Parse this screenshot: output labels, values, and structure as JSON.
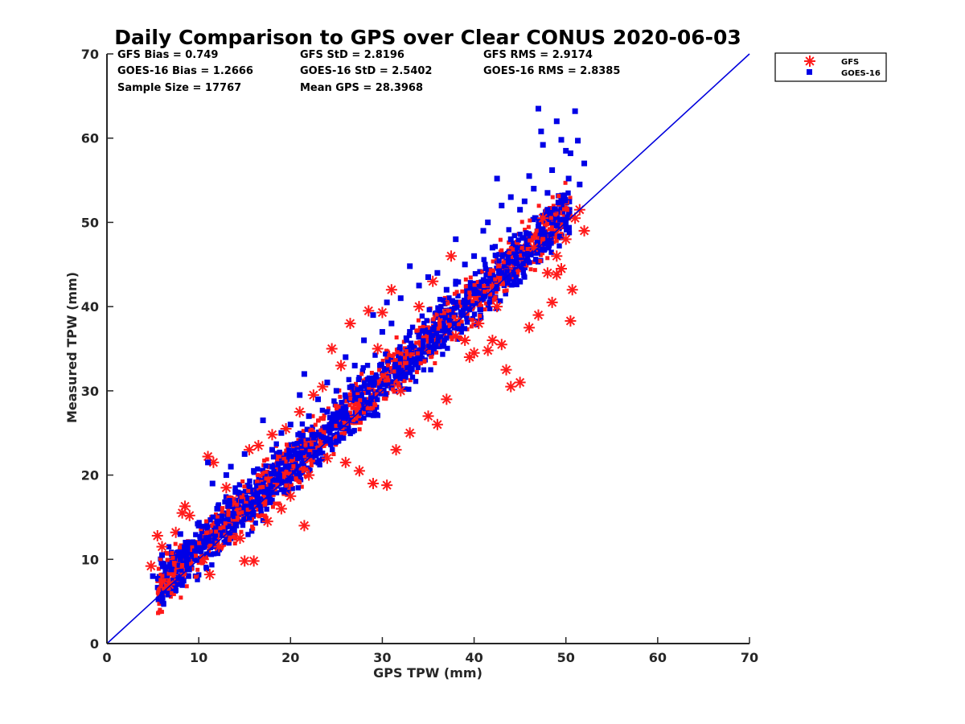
{
  "chart_data": {
    "type": "scatter",
    "title": "Daily Comparison to GPS over Clear CONUS 2020-06-03",
    "xlabel": "GPS TPW (mm)",
    "ylabel": "Measured TPW (mm)",
    "xlim": [
      0,
      70
    ],
    "ylim": [
      0,
      70
    ],
    "xticks": [
      "0",
      "10",
      "20",
      "30",
      "40",
      "50",
      "60",
      "70"
    ],
    "yticks": [
      "0",
      "10",
      "20",
      "30",
      "40",
      "50",
      "60",
      "70"
    ],
    "grid": false,
    "legend_position": "outside-top-right",
    "reference_line": {
      "name": "1:1 line",
      "x": [
        0,
        70
      ],
      "y": [
        0,
        70
      ],
      "color": "#0000dd"
    },
    "stats": [
      [
        "GFS Bias = 0.749",
        "GFS StD = 2.8196",
        "GFS RMS = 2.9174"
      ],
      [
        "GOES-16 Bias = 1.2666",
        "GOES-16 StD = 2.5402",
        "GOES-16 RMS = 2.8385"
      ],
      [
        "Sample Size = 17767",
        "Mean GPS = 28.3968",
        ""
      ]
    ],
    "series": [
      {
        "name": "GFS",
        "marker": "asterisk",
        "color": "#ff1a1a",
        "points": [
          [
            4.8,
            9.2
          ],
          [
            5.5,
            12.8
          ],
          [
            6,
            11.5
          ],
          [
            6.8,
            7
          ],
          [
            7.5,
            13.2
          ],
          [
            8.2,
            15.5
          ],
          [
            8.5,
            16.3
          ],
          [
            9,
            15.2
          ],
          [
            10.5,
            10
          ],
          [
            11,
            22.2
          ],
          [
            11.2,
            8.2
          ],
          [
            11.6,
            21.5
          ],
          [
            12.2,
            11.5
          ],
          [
            13,
            18.5
          ],
          [
            14.5,
            12.5
          ],
          [
            15,
            9.8
          ],
          [
            15.5,
            23
          ],
          [
            16,
            9.8
          ],
          [
            16.5,
            23.5
          ],
          [
            17.5,
            14.5
          ],
          [
            18,
            24.8
          ],
          [
            19,
            16
          ],
          [
            19.5,
            25.5
          ],
          [
            20,
            17.5
          ],
          [
            21,
            27.5
          ],
          [
            21.5,
            14
          ],
          [
            22,
            20
          ],
          [
            22.5,
            29.5
          ],
          [
            23.5,
            30.5
          ],
          [
            24,
            22
          ],
          [
            24.5,
            35
          ],
          [
            25.5,
            33
          ],
          [
            26,
            21.5
          ],
          [
            26.5,
            38
          ],
          [
            27.5,
            20.5
          ],
          [
            28.5,
            39.5
          ],
          [
            29,
            19
          ],
          [
            29.5,
            35
          ],
          [
            30,
            39.3
          ],
          [
            30.5,
            18.8
          ],
          [
            31,
            42
          ],
          [
            31.5,
            23
          ],
          [
            32,
            30
          ],
          [
            33,
            25
          ],
          [
            34,
            40
          ],
          [
            35,
            27
          ],
          [
            35.5,
            43
          ],
          [
            36,
            26
          ],
          [
            37,
            29
          ],
          [
            37.5,
            46
          ],
          [
            38,
            36.5
          ],
          [
            39,
            36
          ],
          [
            39.5,
            34
          ],
          [
            40,
            34.5
          ],
          [
            40.5,
            38
          ],
          [
            41.5,
            34.8
          ],
          [
            42,
            36
          ],
          [
            42.5,
            40
          ],
          [
            43,
            35.5
          ],
          [
            43.5,
            32.5
          ],
          [
            44,
            30.5
          ],
          [
            45,
            31
          ],
          [
            46,
            37.5
          ],
          [
            46.5,
            47
          ],
          [
            47,
            39
          ],
          [
            47.5,
            50.5
          ],
          [
            48,
            44
          ],
          [
            48.5,
            40.5
          ],
          [
            49,
            43.8
          ],
          [
            49.5,
            44.5
          ],
          [
            50,
            48
          ],
          [
            50.5,
            38.3
          ],
          [
            50.7,
            42
          ],
          [
            51,
            50.5
          ],
          [
            51.5,
            51.5
          ],
          [
            52,
            49
          ],
          [
            49,
            46
          ]
        ]
      },
      {
        "name": "GOES-16",
        "marker": "square",
        "color": "#0000e6",
        "points": [
          [
            5,
            8
          ],
          [
            6,
            10.5
          ],
          [
            7,
            8.8
          ],
          [
            8,
            13
          ],
          [
            9,
            12
          ],
          [
            10,
            14
          ],
          [
            11,
            21.5
          ],
          [
            11.5,
            19
          ],
          [
            12,
            16
          ],
          [
            13,
            20
          ],
          [
            13.5,
            21
          ],
          [
            14,
            18
          ],
          [
            15,
            22.5
          ],
          [
            16,
            20.5
          ],
          [
            17,
            26.5
          ],
          [
            18,
            23
          ],
          [
            19,
            25
          ],
          [
            20,
            26
          ],
          [
            21,
            29.5
          ],
          [
            21.5,
            32
          ],
          [
            22,
            27
          ],
          [
            23,
            29
          ],
          [
            24,
            31
          ],
          [
            25,
            30
          ],
          [
            26,
            34
          ],
          [
            27,
            33
          ],
          [
            28,
            36
          ],
          [
            29,
            39
          ],
          [
            30,
            37
          ],
          [
            30.5,
            40.5
          ],
          [
            31,
            38
          ],
          [
            32,
            41
          ],
          [
            33,
            44.8
          ],
          [
            34,
            42.5
          ],
          [
            35,
            43.5
          ],
          [
            36,
            44
          ],
          [
            37,
            42
          ],
          [
            38,
            48
          ],
          [
            39,
            45
          ],
          [
            40,
            46
          ],
          [
            41,
            49
          ],
          [
            41.5,
            50
          ],
          [
            42,
            47
          ],
          [
            42.5,
            55.2
          ],
          [
            43,
            52
          ],
          [
            44,
            53
          ],
          [
            45,
            51.5
          ],
          [
            45.5,
            52.5
          ],
          [
            46,
            55.5
          ],
          [
            46.5,
            54
          ],
          [
            47,
            63.5
          ],
          [
            47.3,
            60.8
          ],
          [
            47.5,
            59.2
          ],
          [
            48,
            53.5
          ],
          [
            48.5,
            56.2
          ],
          [
            49,
            62
          ],
          [
            49.5,
            59.8
          ],
          [
            50,
            58.5
          ],
          [
            50.3,
            55.2
          ],
          [
            50.5,
            58.2
          ],
          [
            51,
            63.2
          ],
          [
            51.3,
            59.7
          ],
          [
            51.5,
            54.5
          ],
          [
            52,
            57
          ],
          [
            48,
            51.5
          ],
          [
            49.5,
            52.5
          ],
          [
            44,
            48
          ],
          [
            39,
            40
          ],
          [
            33,
            37
          ],
          [
            24,
            27.5
          ],
          [
            18,
            21
          ],
          [
            12,
            14.5
          ],
          [
            8,
            10
          ]
        ]
      }
    ]
  }
}
